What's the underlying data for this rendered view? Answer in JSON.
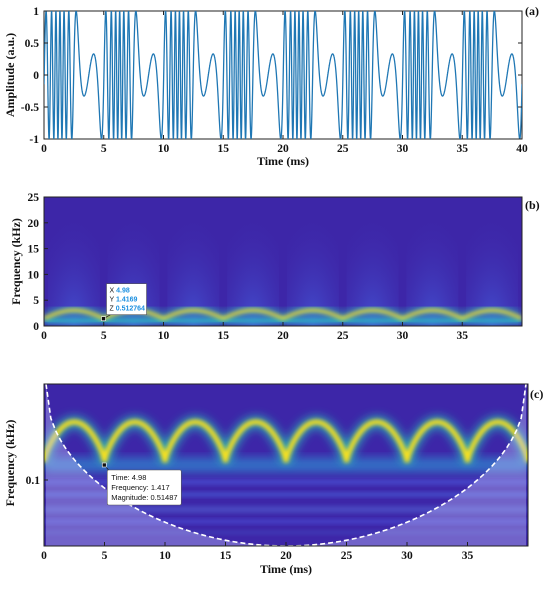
{
  "chart_data": [
    {
      "type": "line",
      "panel_label": "(a)",
      "xlabel": "Time (ms)",
      "ylabel": "Amplitude (a.u.)",
      "xlim": [
        0,
        40
      ],
      "ylim": [
        -1,
        1
      ],
      "x_ticks": [
        "0",
        "5",
        "10",
        "15",
        "20",
        "25",
        "30",
        "35",
        "40"
      ],
      "y_ticks": [
        "1",
        "0.5",
        "0",
        "-0.5",
        "-1"
      ],
      "signal": {
        "f_center_khz": 1.4,
        "f_deviation_khz": 1.6,
        "modulation_period_ms": 5
      },
      "grid": false,
      "line_color": "#1f77b4"
    },
    {
      "type": "heatmap",
      "panel_label": "(b)",
      "xlabel": "",
      "ylabel": "Frequency (kHz)",
      "xlim": [
        0,
        40
      ],
      "ylim": [
        0,
        25
      ],
      "x_ticks": [
        "0",
        "5",
        "10",
        "15",
        "20",
        "25",
        "30",
        "35"
      ],
      "y_ticks": [
        "25",
        "20",
        "15",
        "10",
        "5",
        "0"
      ],
      "datatip": {
        "x": "X 4.98",
        "y": "Y 1.4169",
        "z": "Z 0.512764",
        "marker_x_ms": 4.98,
        "marker_freq_khz": 1.4169
      }
    },
    {
      "type": "heatmap",
      "panel_label": "(c)",
      "xlabel": "Time (ms)",
      "ylabel": "Frequency (kHz)",
      "xlim": [
        0,
        40
      ],
      "x_ticks": [
        "0",
        "5",
        "10",
        "15",
        "20",
        "25",
        "30",
        "35"
      ],
      "y_ticks": [
        "0.1"
      ],
      "datatip": {
        "time": "Time: 4.98",
        "frequency": "Frequency: 1.417",
        "magnitude": "Magnitude: 0.51487",
        "marker_x_ms": 4.98
      }
    }
  ],
  "colors": {
    "line": "#1f77b4",
    "background_map": "#3d26a8",
    "datatip_value": "#1a8fe0"
  }
}
